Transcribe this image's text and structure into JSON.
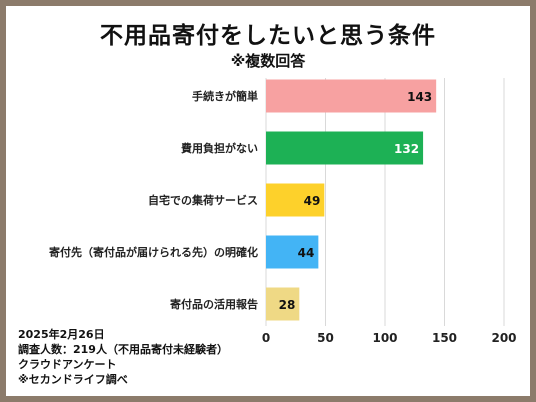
{
  "title": "不用品寄付をしたいと思う条件",
  "subtitle": "※複数回答",
  "chart_data": {
    "type": "bar",
    "orientation": "horizontal",
    "title": "不用品寄付をしたいと思う条件",
    "subtitle": "※複数回答",
    "categories": [
      "手続きが簡単",
      "費用負担がない",
      "自宅での集荷サービス",
      "寄付先（寄付品が届けられる先）の明確化",
      "寄付品の活用報告"
    ],
    "values": [
      143,
      132,
      49,
      44,
      28
    ],
    "colors": [
      "#f7a1a1",
      "#1db155",
      "#fdd12b",
      "#43b4f5",
      "#efd985"
    ],
    "label_colors": [
      "#111111",
      "#ffffff",
      "#111111",
      "#111111",
      "#111111"
    ],
    "xlim": [
      0,
      200
    ],
    "xticks": [
      0,
      50,
      100,
      150,
      200
    ],
    "grid": true,
    "xlabel": "",
    "ylabel": ""
  },
  "notes": [
    "2025年2月26日",
    "調査人数：219人（不用品寄付未経験者）",
    "クラウドアンケート",
    "※セカンドライフ調べ"
  ]
}
